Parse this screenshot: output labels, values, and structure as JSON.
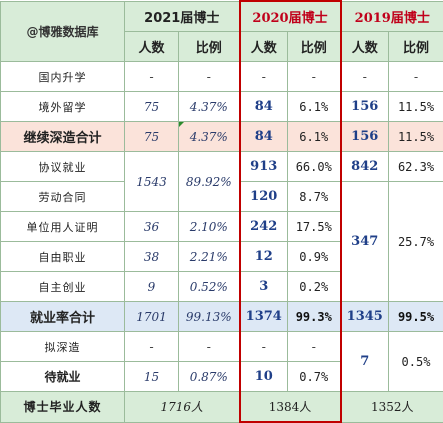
{
  "corner_label": "@博雅数据库",
  "years": {
    "y2021": "2021届博士",
    "y2020": "2020届博士",
    "y2019": "2019届博士"
  },
  "sub": {
    "count": "人数",
    "ratio": "比例"
  },
  "rows": {
    "domestic": {
      "label": "国内升学",
      "c21": "-",
      "p21": "-",
      "c20": "-",
      "p20": "-",
      "c19": "-",
      "p19": "-"
    },
    "abroad": {
      "label": "境外留学",
      "c21": "75",
      "p21": "4.37%",
      "c20": "84",
      "p20": "6.1%",
      "c19": "156",
      "p19": "11.5%"
    },
    "further": {
      "label": "继续深造合计",
      "c21": "75",
      "p21": "4.37%",
      "c20": "84",
      "p20": "6.1%",
      "c19": "156",
      "p19": "11.5%"
    },
    "agreement": {
      "label": "协议就业",
      "c20": "913",
      "p20": "66.0%",
      "c19": "842",
      "p19": "62.3%"
    },
    "labor": {
      "label": "劳动合同",
      "c20": "120",
      "p20": "8.7%"
    },
    "merged21": {
      "c21": "1543",
      "p21": "89.92%"
    },
    "unit": {
      "label": "单位用人证明",
      "c21": "36",
      "p21": "2.10%",
      "c20": "242",
      "p20": "17.5%"
    },
    "freelance": {
      "label": "自由职业",
      "c21": "38",
      "p21": "2.21%",
      "c20": "12",
      "p20": "0.9%"
    },
    "startup": {
      "label": "自主创业",
      "c21": "9",
      "p21": "0.52%",
      "c20": "3",
      "p20": "0.2%"
    },
    "merged19": {
      "c19": "347",
      "p19": "25.7%"
    },
    "employment": {
      "label": "就业率合计",
      "c21": "1701",
      "p21": "99.13%",
      "c20": "1374",
      "p20": "99.3%",
      "c19": "1345",
      "p19": "99.5%"
    },
    "prepare": {
      "label": "拟深造",
      "c21": "-",
      "p21": "-",
      "c20": "-",
      "p20": "-"
    },
    "waiting": {
      "label": "待就业",
      "c21": "15",
      "p21": "0.87%",
      "c20": "10",
      "p20": "0.7%"
    },
    "merged19b": {
      "c19": "7",
      "p19": "0.5%"
    }
  },
  "footer": {
    "label": "博士毕业人数",
    "t21": "1716人",
    "t20": "1384人",
    "t19": "1352人"
  }
}
